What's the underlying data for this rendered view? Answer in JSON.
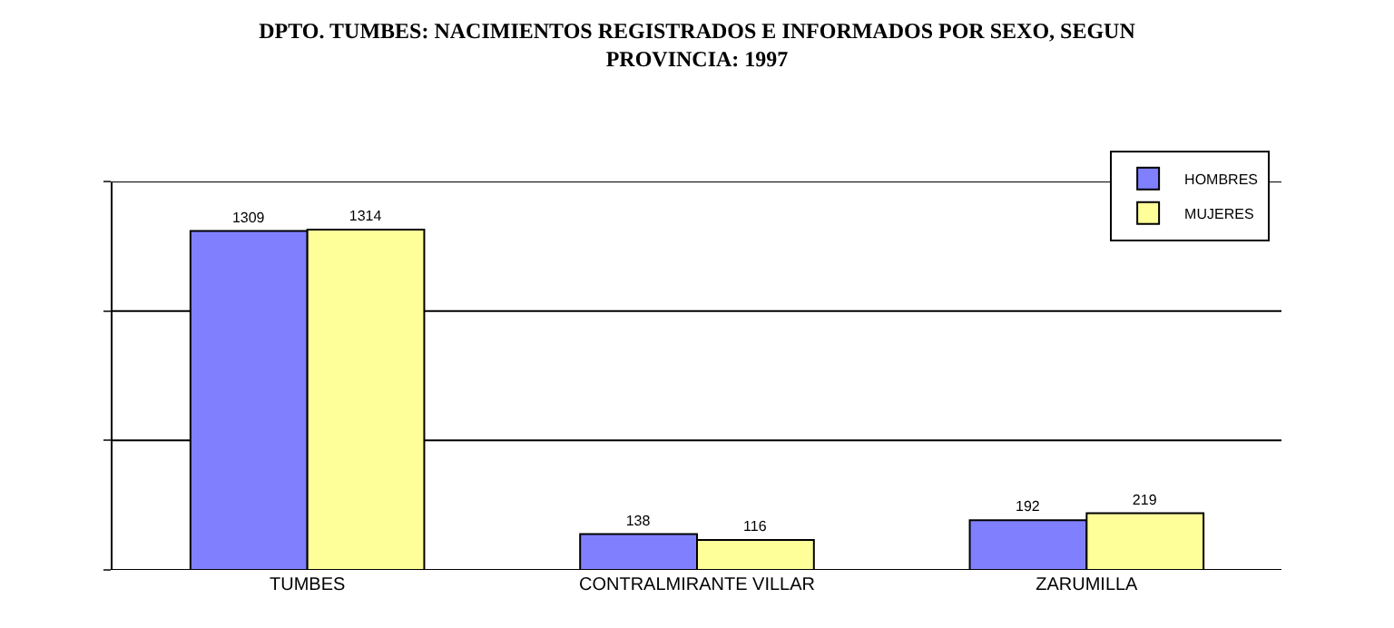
{
  "chart_data": {
    "type": "bar",
    "title": "DPTO. TUMBES: NACIMIENTOS REGISTRADOS E INFORMADOS POR SEXO, SEGUN\nPROVINCIA: 1997",
    "categories": [
      "TUMBES",
      "CONTRALMIRANTE VILLAR",
      "ZARUMILLA"
    ],
    "series": [
      {
        "name": "HOMBRES",
        "color": "#8080ff",
        "values": [
          1309,
          138,
          192
        ]
      },
      {
        "name": "MUJERES",
        "color": "#ffff99",
        "values": [
          1314,
          116,
          219
        ]
      }
    ],
    "ylim": [
      0,
      1500
    ],
    "yticks": [
      {
        "value": 0,
        "label": null
      },
      {
        "value": 500,
        "label": null
      },
      {
        "value": 1000,
        "label": null
      },
      {
        "value": 1500,
        "label": null
      }
    ],
    "grid": "y",
    "legend": "top right",
    "data_labels": true
  }
}
